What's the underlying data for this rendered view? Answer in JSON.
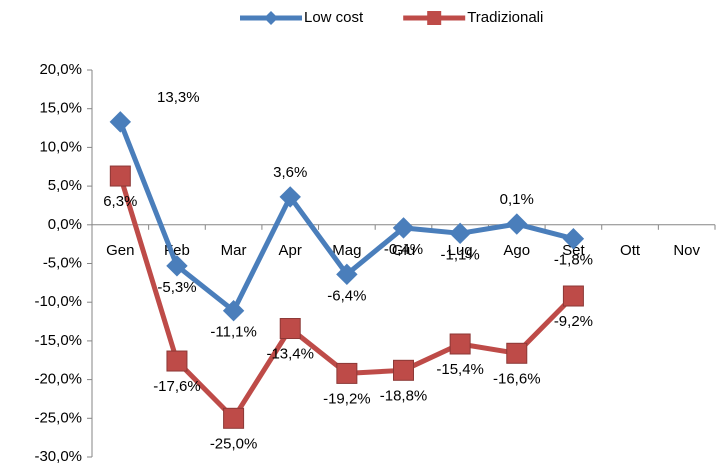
{
  "chart_data": {
    "type": "line",
    "categories": [
      "Gen",
      "Feb",
      "Mar",
      "Apr",
      "Mag",
      "Giu",
      "Lug",
      "Ago",
      "Set",
      "Ott",
      "Nov"
    ],
    "series": [
      {
        "name": "Low cost",
        "color": "#4a7ebb",
        "marker": "diamond",
        "values": [
          13.3,
          -5.3,
          -11.1,
          3.6,
          -6.4,
          -0.4,
          -1.1,
          0.1,
          -1.8,
          null,
          null
        ],
        "value_labels": [
          "13,3%",
          "-5,3%",
          "-11,1%",
          "3,6%",
          "-6,4%",
          "-0,4%",
          "-1,1%",
          "0,1%",
          "-1,8%",
          null,
          null
        ]
      },
      {
        "name": "Tradizionali",
        "color": "#be4b48",
        "marker": "square",
        "values": [
          6.3,
          -17.6,
          -25.0,
          -13.4,
          -19.2,
          -18.8,
          -15.4,
          -16.6,
          -9.2,
          null,
          null
        ],
        "value_labels": [
          "6,3%",
          "-17,6%",
          "-25,0%",
          "-13,4%",
          "-19,2%",
          "-18,8%",
          "-15,4%",
          "-16,6%",
          "-9,2%",
          null,
          null
        ]
      }
    ],
    "ylim": [
      -30,
      20
    ],
    "yticks": [
      {
        "value": -30,
        "label": "-30,0%"
      },
      {
        "value": -25,
        "label": "-25,0%"
      },
      {
        "value": -20,
        "label": "-20,0%"
      },
      {
        "value": -15,
        "label": "-15,0%"
      },
      {
        "value": -10,
        "label": "-10,0%"
      },
      {
        "value": -5,
        "label": "-5,0%"
      },
      {
        "value": 0,
        "label": "0,0%"
      },
      {
        "value": 5,
        "label": "5,0%"
      },
      {
        "value": 10,
        "label": "10,0%"
      },
      {
        "value": 15,
        "label": "15,0%"
      },
      {
        "value": 20,
        "label": "20,0%"
      }
    ],
    "legend": "top",
    "grid": false
  }
}
